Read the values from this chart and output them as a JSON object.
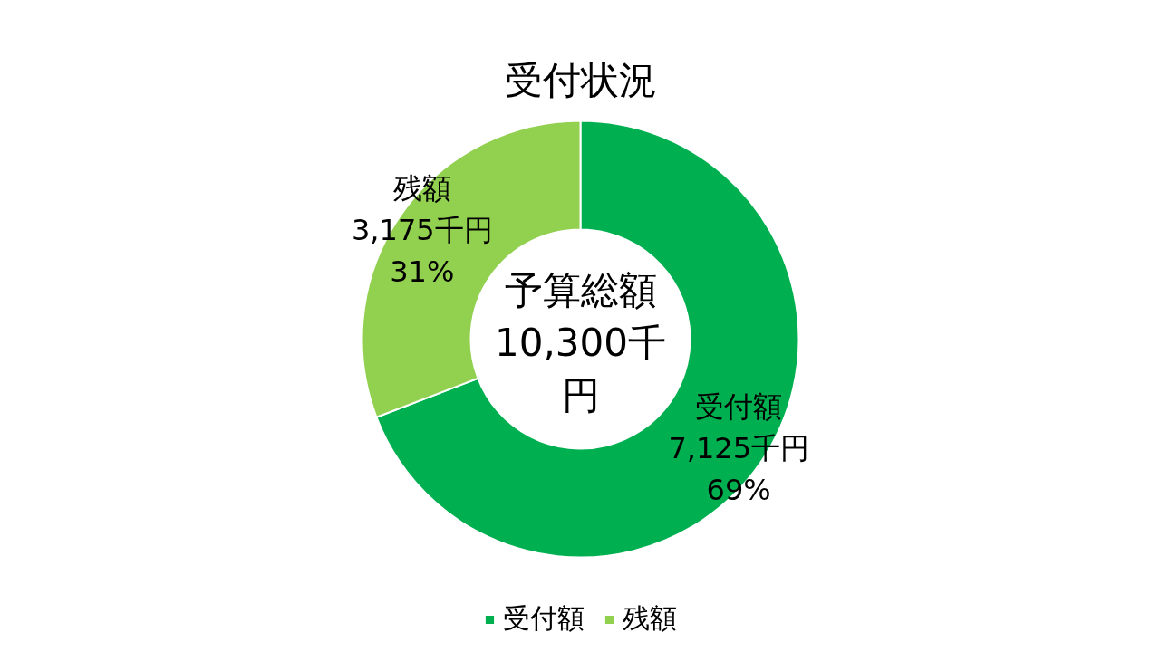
{
  "chart_data": {
    "type": "donut",
    "title": "受付状況",
    "categories": [
      "受付額",
      "残額"
    ],
    "values": [
      7125,
      3175
    ],
    "colors": [
      "#00b050",
      "#92d050"
    ],
    "value_labels": [
      "受付額\n7,125千円\n69%",
      "残額\n3,175千円\n31%"
    ],
    "annotations": [
      "予算総額\n10,300千円"
    ],
    "legend": "bottom"
  }
}
